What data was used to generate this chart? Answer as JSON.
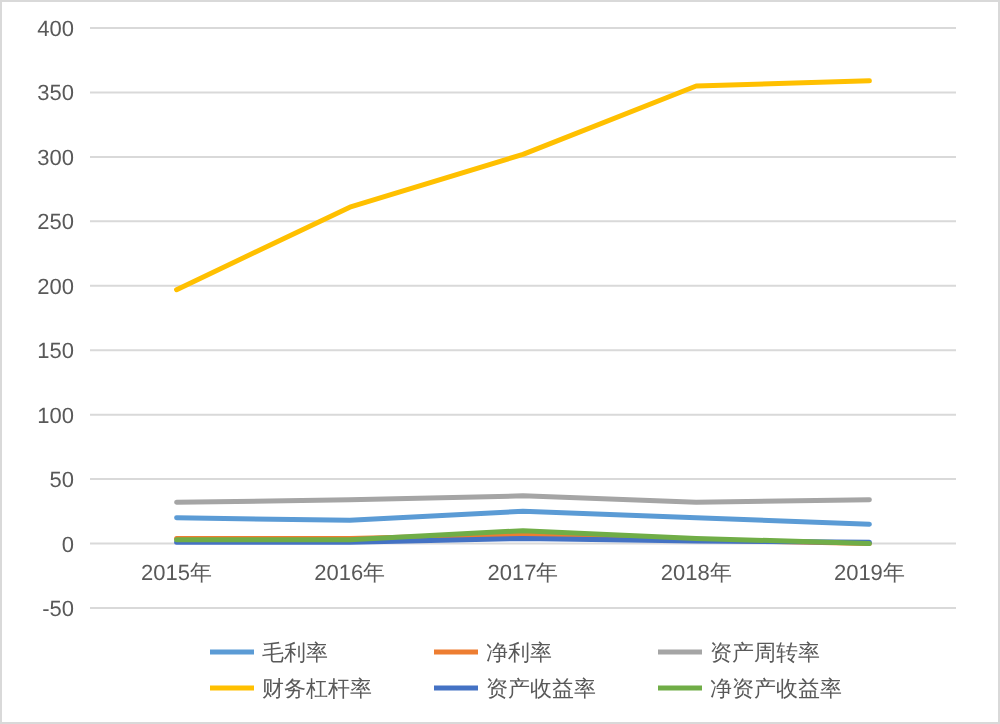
{
  "chart_data": {
    "type": "line",
    "categories": [
      "2015年",
      "2016年",
      "2017年",
      "2018年",
      "2019年"
    ],
    "ylim": [
      -50,
      400
    ],
    "yticks": [
      -50,
      0,
      50,
      100,
      150,
      200,
      250,
      300,
      350,
      400
    ],
    "grid": "y",
    "legend": "bottom",
    "marker": "none",
    "line_style": "solid",
    "series": [
      {
        "name": "毛利率",
        "color": "#5b9bd5",
        "values": [
          20,
          18,
          25,
          20,
          15
        ]
      },
      {
        "name": "净利率",
        "color": "#ed7d31",
        "values": [
          4,
          4,
          7,
          3,
          0
        ]
      },
      {
        "name": "资产周转率",
        "color": "#a5a5a5",
        "values": [
          32,
          34,
          37,
          32,
          34
        ]
      },
      {
        "name": "财务杠杆率",
        "color": "#ffc000",
        "values": [
          197,
          261,
          302,
          355,
          359
        ]
      },
      {
        "name": "资产收益率",
        "color": "#4472c4",
        "values": [
          1,
          1,
          4,
          2,
          1
        ]
      },
      {
        "name": "净资产收益率",
        "color": "#70ad47",
        "values": [
          3,
          3,
          10,
          4,
          0
        ]
      }
    ]
  }
}
